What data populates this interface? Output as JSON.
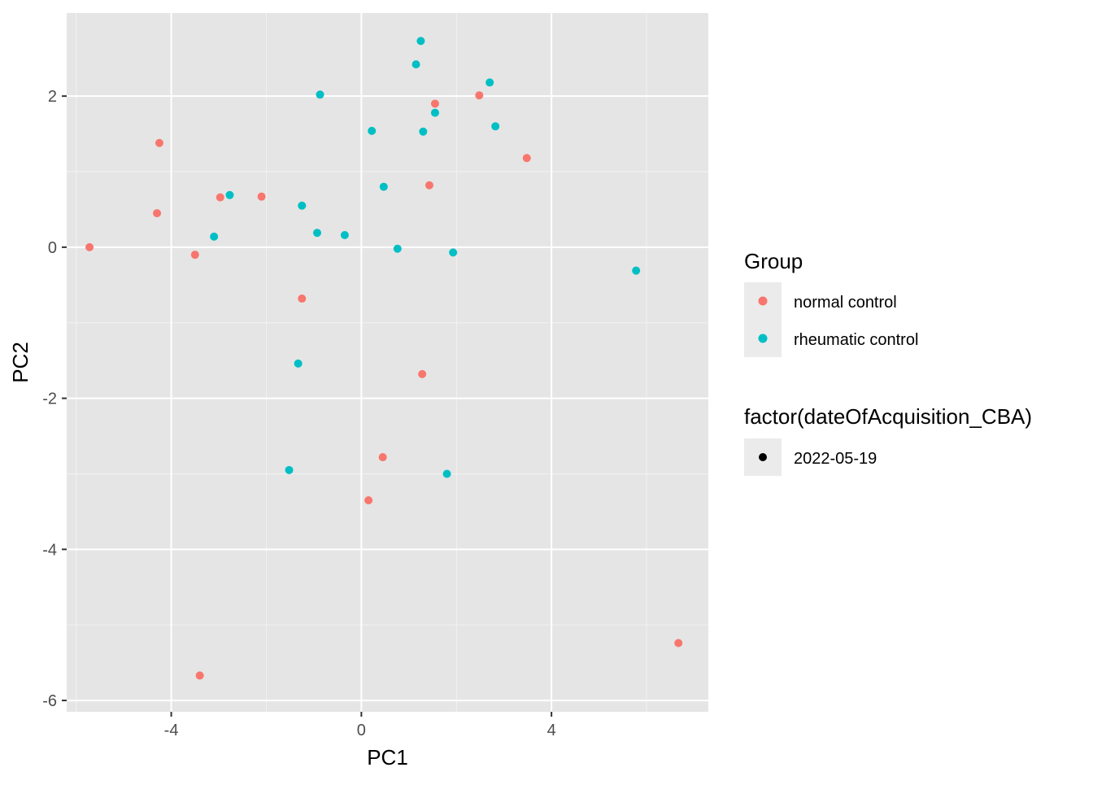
{
  "chart_data": {
    "type": "scatter",
    "xlabel": "PC1",
    "ylabel": "PC2",
    "xlim": [
      -6.2,
      7.3
    ],
    "ylim": [
      -6.15,
      3.1
    ],
    "xticks": [
      -4,
      0,
      4
    ],
    "xtick_labels": [
      "-4",
      "0",
      "4"
    ],
    "yticks": [
      2,
      0,
      -2,
      -4,
      -6
    ],
    "ytick_labels": [
      "2",
      "0",
      "-2",
      "-4",
      "-6"
    ],
    "grid": true,
    "panel_background": "#e5e5e5",
    "legend_position": "right",
    "legend": [
      {
        "title": "Group",
        "entries": [
          {
            "label": "normal control",
            "color": "#f8766d"
          },
          {
            "label": "rheumatic control",
            "color": "#00bfc4"
          }
        ]
      },
      {
        "title": "factor(dateOfAcquisition_CBA)",
        "entries": [
          {
            "label": "2022-05-19",
            "color": "#000000"
          }
        ]
      }
    ],
    "series": [
      {
        "name": "normal control",
        "color": "#f8766d",
        "points": [
          {
            "x": -5.72,
            "y": 0.0
          },
          {
            "x": -4.25,
            "y": 1.38
          },
          {
            "x": -4.3,
            "y": 0.45
          },
          {
            "x": -3.5,
            "y": -0.1
          },
          {
            "x": -2.97,
            "y": 0.66
          },
          {
            "x": -2.1,
            "y": 0.67
          },
          {
            "x": -1.25,
            "y": -0.68
          },
          {
            "x": -3.4,
            "y": -5.67
          },
          {
            "x": 0.15,
            "y": -3.35
          },
          {
            "x": 0.45,
            "y": -2.78
          },
          {
            "x": 1.28,
            "y": -1.68
          },
          {
            "x": 1.43,
            "y": 0.82
          },
          {
            "x": 1.55,
            "y": 1.9
          },
          {
            "x": 2.48,
            "y": 2.01
          },
          {
            "x": 3.48,
            "y": 1.18
          },
          {
            "x": 6.67,
            "y": -5.24
          }
        ]
      },
      {
        "name": "rheumatic control",
        "color": "#00bfc4",
        "points": [
          {
            "x": -3.1,
            "y": 0.14
          },
          {
            "x": -2.77,
            "y": 0.69
          },
          {
            "x": -1.25,
            "y": 0.55
          },
          {
            "x": -0.93,
            "y": 0.19
          },
          {
            "x": -0.87,
            "y": 2.02
          },
          {
            "x": -0.35,
            "y": 0.16
          },
          {
            "x": -1.33,
            "y": -1.54
          },
          {
            "x": -1.52,
            "y": -2.95
          },
          {
            "x": 0.22,
            "y": 1.54
          },
          {
            "x": 0.47,
            "y": 0.8
          },
          {
            "x": 0.76,
            "y": -0.02
          },
          {
            "x": 1.15,
            "y": 2.42
          },
          {
            "x": 1.25,
            "y": 2.73
          },
          {
            "x": 1.3,
            "y": 1.53
          },
          {
            "x": 1.55,
            "y": 1.78
          },
          {
            "x": 1.8,
            "y": -3.0
          },
          {
            "x": 1.93,
            "y": -0.07
          },
          {
            "x": 2.7,
            "y": 2.18
          },
          {
            "x": 2.82,
            "y": 1.6
          },
          {
            "x": 5.78,
            "y": -0.31
          }
        ]
      }
    ]
  }
}
